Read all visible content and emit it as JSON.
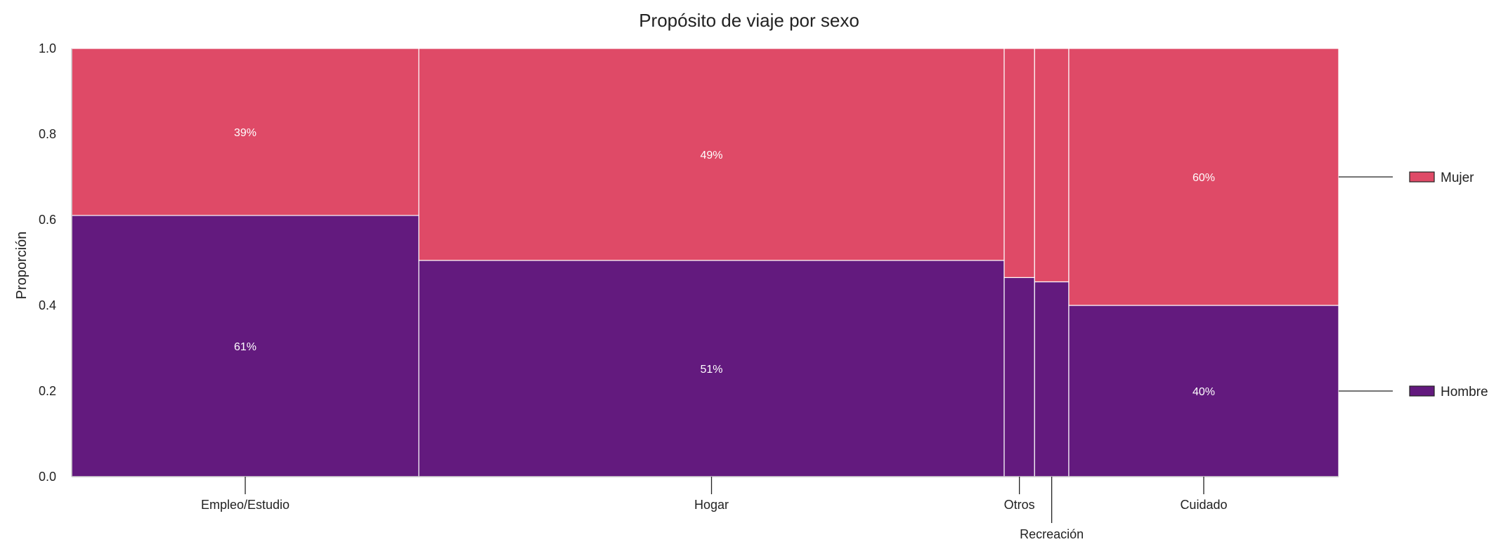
{
  "chart_data": {
    "type": "mosaic",
    "title": "Propósito de viaje por sexo",
    "xlabel": "",
    "ylabel": "Proporción",
    "ylim": [
      0,
      1
    ],
    "yticks": [
      "0.0",
      "0.2",
      "0.4",
      "0.6",
      "0.8",
      "1.0"
    ],
    "grid": false,
    "legend_position": "right",
    "categories": [
      "Empleo/Estudio",
      "Hogar",
      "Otros",
      "Recreación",
      "Cuidado"
    ],
    "category_share": [
      0.274,
      0.462,
      0.024,
      0.027,
      0.213
    ],
    "series": [
      {
        "name": "Hombre",
        "color": "#631a7e",
        "values": [
          0.61,
          0.505,
          0.465,
          0.455,
          0.4
        ],
        "labels": [
          "61%",
          "51%",
          "",
          "",
          "40%"
        ]
      },
      {
        "name": "Mujer",
        "color": "#df4a67",
        "values": [
          0.39,
          0.495,
          0.535,
          0.545,
          0.6
        ],
        "labels": [
          "39%",
          "49%",
          "",
          "",
          "60%"
        ]
      }
    ]
  }
}
